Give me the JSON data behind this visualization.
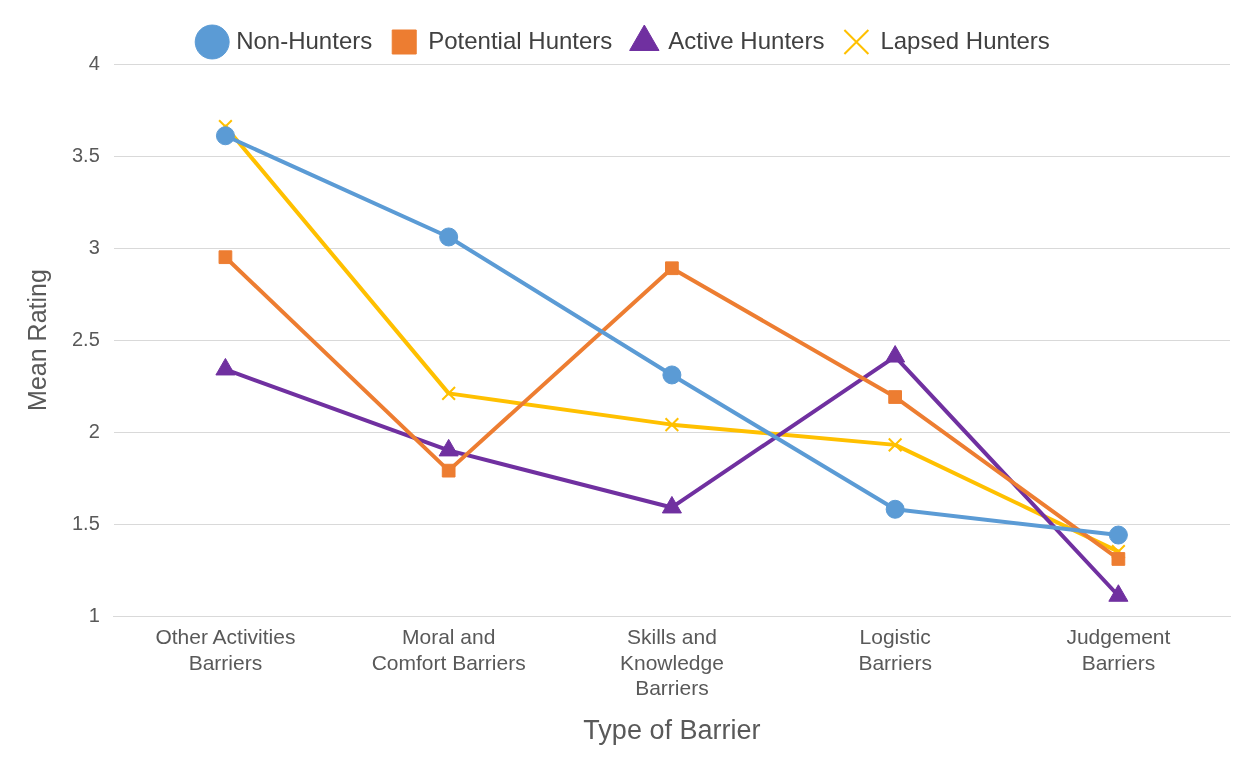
{
  "chart_data": {
    "type": "line",
    "xlabel": "Type of Barrier",
    "ylabel": "Mean Rating",
    "categories": [
      "Other Activities Barriers",
      "Moral and Comfort Barriers",
      "Skills and Knowledge Barriers",
      "Logistic Barriers",
      "Judgement Barriers"
    ],
    "series": [
      {
        "name": "Non-Hunters",
        "color": "#5b9bd5",
        "marker": "circle",
        "values": [
          3.61,
          3.06,
          2.31,
          1.58,
          1.44
        ]
      },
      {
        "name": "Potential Hunters",
        "color": "#ed7d31",
        "marker": "square",
        "values": [
          2.95,
          1.79,
          2.89,
          2.19,
          1.31
        ]
      },
      {
        "name": "Active Hunters",
        "color": "#7030a0",
        "marker": "triangle",
        "values": [
          2.34,
          1.9,
          1.59,
          2.41,
          1.11
        ]
      },
      {
        "name": "Lapsed Hunters",
        "color": "#ffc000",
        "marker": "cross",
        "values": [
          3.66,
          2.21,
          2.04,
          1.93,
          1.35
        ]
      }
    ],
    "ylim": [
      1,
      4
    ],
    "yticks": [
      1,
      1.5,
      2,
      2.5,
      3,
      3.5,
      4
    ],
    "grid": "y",
    "legend": "top"
  }
}
